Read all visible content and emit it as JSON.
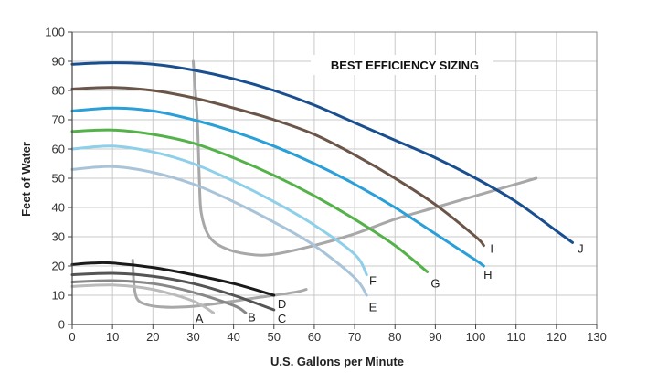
{
  "chart_data": {
    "type": "line",
    "title": "BEST EFFICIENCY SIZING",
    "xlabel": "U.S. Gallons per Minute",
    "ylabel": "Feet of Water",
    "xlim": [
      0,
      130
    ],
    "ylim": [
      0,
      100
    ],
    "xticks": [
      "0",
      "10",
      "20",
      "30",
      "40",
      "50",
      "60",
      "70",
      "80",
      "90",
      "100",
      "110",
      "120",
      "130"
    ],
    "yticks": [
      "0",
      "10",
      "20",
      "30",
      "40",
      "50",
      "60",
      "70",
      "80",
      "90",
      "100"
    ],
    "grid": true,
    "pump_curves": [
      {
        "label": "J",
        "color": "#1a4f8f",
        "points": [
          [
            0,
            89
          ],
          [
            10,
            89.5
          ],
          [
            20,
            89
          ],
          [
            30,
            87
          ],
          [
            40,
            84
          ],
          [
            50,
            80
          ],
          [
            60,
            75
          ],
          [
            70,
            69
          ],
          [
            80,
            63
          ],
          [
            90,
            57
          ],
          [
            100,
            50
          ],
          [
            110,
            42
          ],
          [
            120,
            32
          ],
          [
            124,
            28
          ]
        ]
      },
      {
        "label": "I",
        "color": "#6b5548",
        "points": [
          [
            0,
            80.5
          ],
          [
            10,
            81
          ],
          [
            20,
            80
          ],
          [
            30,
            77.5
          ],
          [
            40,
            74
          ],
          [
            50,
            70
          ],
          [
            60,
            65
          ],
          [
            70,
            58
          ],
          [
            80,
            50
          ],
          [
            90,
            41
          ],
          [
            100,
            30
          ],
          [
            102,
            27
          ]
        ]
      },
      {
        "label": "H",
        "color": "#2a9fd8",
        "points": [
          [
            0,
            73
          ],
          [
            10,
            74
          ],
          [
            20,
            73
          ],
          [
            30,
            70
          ],
          [
            40,
            66
          ],
          [
            50,
            61
          ],
          [
            60,
            55
          ],
          [
            70,
            48
          ],
          [
            80,
            40
          ],
          [
            90,
            31
          ],
          [
            100,
            22
          ],
          [
            102,
            20
          ]
        ]
      },
      {
        "label": "G",
        "color": "#55b24a",
        "points": [
          [
            0,
            66
          ],
          [
            10,
            66.5
          ],
          [
            20,
            65
          ],
          [
            30,
            62
          ],
          [
            40,
            57
          ],
          [
            50,
            51
          ],
          [
            60,
            44
          ],
          [
            70,
            36
          ],
          [
            80,
            27
          ],
          [
            88,
            18
          ]
        ]
      },
      {
        "label": "F",
        "color": "#8ecfe9",
        "points": [
          [
            0,
            60
          ],
          [
            10,
            61
          ],
          [
            20,
            59
          ],
          [
            30,
            55
          ],
          [
            40,
            49
          ],
          [
            50,
            42
          ],
          [
            60,
            34
          ],
          [
            70,
            24
          ],
          [
            73,
            17
          ]
        ]
      },
      {
        "label": "E",
        "color": "#a9c4d8",
        "points": [
          [
            0,
            53
          ],
          [
            10,
            54
          ],
          [
            20,
            52
          ],
          [
            30,
            48
          ],
          [
            40,
            42
          ],
          [
            50,
            35
          ],
          [
            60,
            27
          ],
          [
            70,
            16
          ],
          [
            73,
            10
          ]
        ]
      },
      {
        "label": "D",
        "color": "#1a1a1a",
        "points": [
          [
            0,
            20.5
          ],
          [
            5,
            21
          ],
          [
            10,
            21
          ],
          [
            20,
            19.5
          ],
          [
            30,
            17
          ],
          [
            40,
            14
          ],
          [
            50,
            10
          ]
        ]
      },
      {
        "label": "C",
        "color": "#555555",
        "points": [
          [
            0,
            17
          ],
          [
            10,
            17.5
          ],
          [
            20,
            16.5
          ],
          [
            30,
            14
          ],
          [
            40,
            10
          ],
          [
            50,
            5
          ]
        ]
      },
      {
        "label": "B",
        "color": "#888888",
        "points": [
          [
            0,
            14.5
          ],
          [
            10,
            15
          ],
          [
            20,
            14
          ],
          [
            30,
            11
          ],
          [
            40,
            6.5
          ],
          [
            43,
            4
          ]
        ]
      },
      {
        "label": "A",
        "color": "#bbbbbb",
        "points": [
          [
            0,
            13
          ],
          [
            10,
            13.5
          ],
          [
            20,
            12
          ],
          [
            30,
            8
          ],
          [
            35,
            4
          ]
        ]
      }
    ],
    "system_curves": [
      {
        "color": "#a8a8a8",
        "points": [
          [
            30,
            90
          ],
          [
            31,
            70
          ],
          [
            31.5,
            50
          ],
          [
            32,
            38
          ],
          [
            34,
            30
          ],
          [
            38,
            26
          ],
          [
            44,
            24
          ],
          [
            50,
            24
          ],
          [
            60,
            27
          ],
          [
            70,
            31
          ],
          [
            80,
            36
          ],
          [
            90,
            40
          ],
          [
            100,
            44
          ],
          [
            110,
            48
          ],
          [
            115,
            50
          ]
        ]
      },
      {
        "color": "#a8a8a8",
        "points": [
          [
            15,
            22
          ],
          [
            15.3,
            14
          ],
          [
            16,
            9
          ],
          [
            18,
            7
          ],
          [
            22,
            6
          ],
          [
            28,
            6
          ],
          [
            35,
            7
          ],
          [
            45,
            9
          ],
          [
            55,
            11
          ],
          [
            58,
            12
          ]
        ]
      }
    ],
    "curve_labels": [
      {
        "text": "J",
        "x": 126,
        "y": 26
      },
      {
        "text": "I",
        "x": 104,
        "y": 26
      },
      {
        "text": "H",
        "x": 103,
        "y": 17
      },
      {
        "text": "G",
        "x": 90,
        "y": 14
      },
      {
        "text": "F",
        "x": 74.5,
        "y": 15
      },
      {
        "text": "E",
        "x": 74.5,
        "y": 6
      },
      {
        "text": "D",
        "x": 52,
        "y": 7
      },
      {
        "text": "C",
        "x": 52,
        "y": 2
      },
      {
        "text": "B",
        "x": 44.5,
        "y": 2.5
      },
      {
        "text": "A",
        "x": 31.5,
        "y": 2
      }
    ]
  }
}
